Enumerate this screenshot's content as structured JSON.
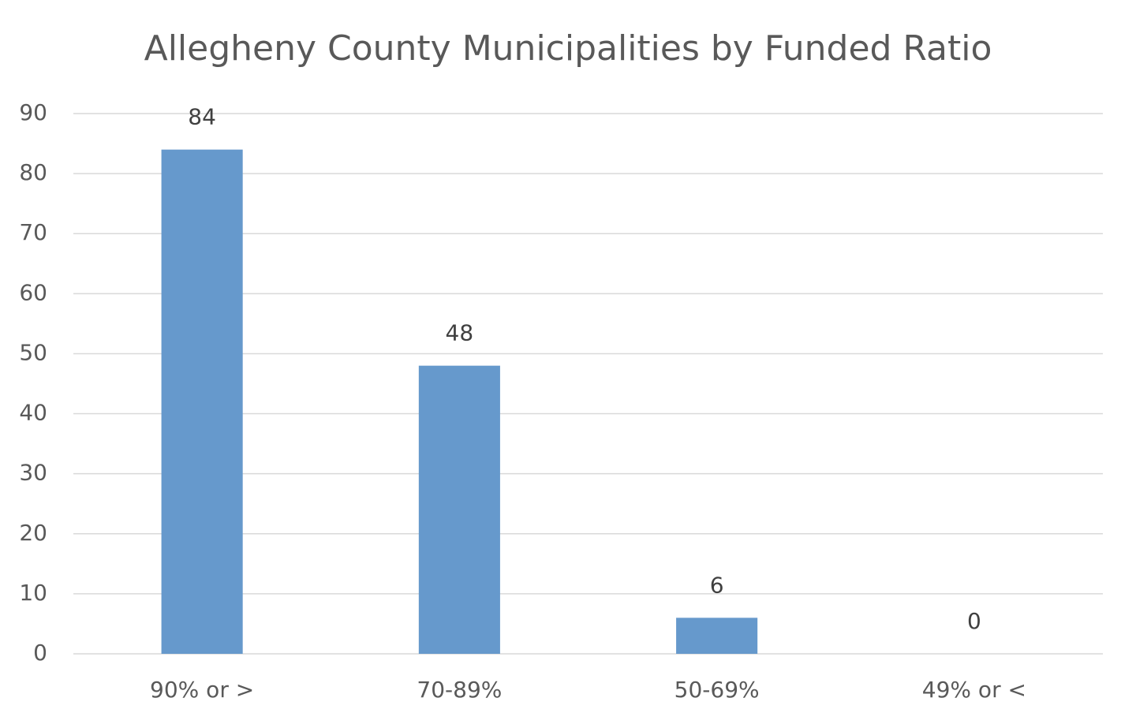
{
  "chart_data": {
    "type": "bar",
    "title": "Allegheny County Municipalities by Funded Ratio",
    "categories": [
      "90% or >",
      "70-89%",
      "50-69%",
      "49% or <"
    ],
    "values": [
      84,
      48,
      6,
      0
    ],
    "color": "#6699cc",
    "ylim": [
      0,
      90
    ],
    "yticks": [
      0,
      10,
      20,
      30,
      40,
      50,
      60,
      70,
      80,
      90
    ],
    "grid": true,
    "data_labels": true
  }
}
